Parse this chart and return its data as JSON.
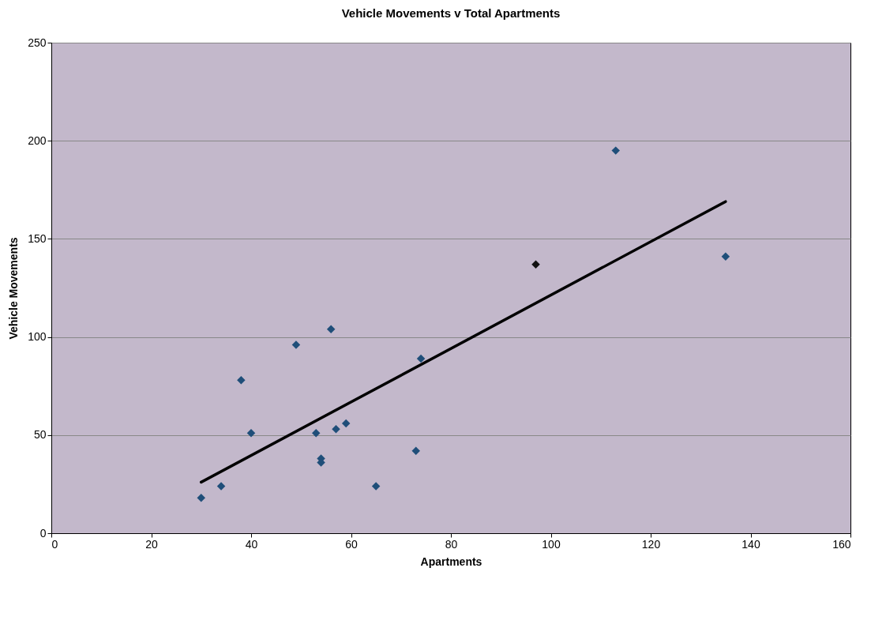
{
  "chart_data": {
    "type": "scatter",
    "title": "Vehicle Movements v Total Apartments",
    "xlabel": "Apartments",
    "ylabel": "Vehicle Movements",
    "xlim": [
      0,
      160
    ],
    "xticks": [
      0,
      20,
      40,
      60,
      80,
      100,
      120,
      140,
      160
    ],
    "ylim": [
      0,
      250
    ],
    "yticks": [
      0,
      50,
      100,
      150,
      200,
      250
    ],
    "grid": "y",
    "marker": "diamond",
    "series": [
      {
        "color": "#1f4e79",
        "x": [
          30,
          34,
          38,
          40,
          49,
          53,
          54,
          54,
          56,
          57,
          59,
          65,
          73,
          74,
          113,
          135
        ],
        "values": [
          18,
          24,
          78,
          51,
          96,
          51,
          38,
          36,
          104,
          53,
          56,
          24,
          42,
          89,
          195,
          141
        ]
      },
      {
        "color": "#111111",
        "x": [
          97
        ],
        "values": [
          137
        ]
      },
      {
        "type": "line",
        "marker": "none",
        "color": "#000000",
        "x": [
          30,
          135
        ],
        "values": [
          26,
          169
        ]
      }
    ]
  }
}
